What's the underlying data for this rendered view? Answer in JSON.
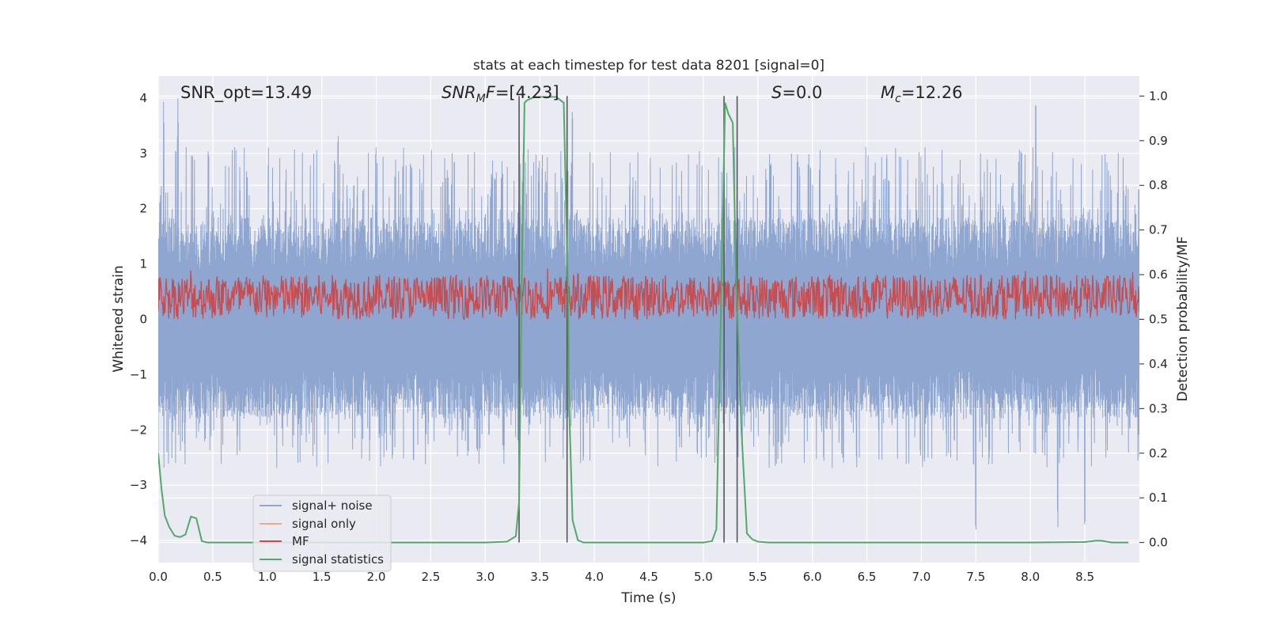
{
  "chart_data": {
    "type": "line",
    "title": "stats at each timestep for test data 8201 [signal=0]",
    "xlabel": "Time (s)",
    "ylabel": "Whitened strain",
    "ylabel_right": "Detection probability/MF",
    "xlim": [
      0.0,
      9.0
    ],
    "ylim": [
      -4.4,
      4.4
    ],
    "ylim_right": [
      -0.045,
      1.045
    ],
    "x_ticks": [
      0.0,
      0.5,
      1.0,
      1.5,
      2.0,
      2.5,
      3.0,
      3.5,
      4.0,
      4.5,
      5.0,
      5.5,
      6.0,
      6.5,
      7.0,
      7.5,
      8.0,
      8.5
    ],
    "x_tick_labels": [
      "0.0",
      "0.5",
      "1.0",
      "1.5",
      "2.0",
      "2.5",
      "3.0",
      "3.5",
      "4.0",
      "4.5",
      "5.0",
      "5.5",
      "6.0",
      "6.5",
      "7.0",
      "7.5",
      "8.0",
      "8.5"
    ],
    "y_ticks": [
      -4,
      -3,
      -2,
      -1,
      0,
      1,
      2,
      3,
      4
    ],
    "y_tick_labels": [
      "−4",
      "−3",
      "−2",
      "−1",
      "0",
      "1",
      "2",
      "3",
      "4"
    ],
    "y_right_ticks": [
      0.0,
      0.1,
      0.2,
      0.3,
      0.4,
      0.5,
      0.6,
      0.7,
      0.8,
      0.9,
      1.0
    ],
    "y_right_tick_labels": [
      "0.0",
      "0.1",
      "0.2",
      "0.3",
      "0.4",
      "0.5",
      "0.6",
      "0.7",
      "0.8",
      "0.9",
      "1.0"
    ],
    "annotations": {
      "snr_opt": "SNR_opt=13.49",
      "snr_mf": "=[4.23]",
      "s": "=0.0",
      "mc": "=12.26"
    },
    "annotation_math": {
      "snr_mf_base": "SNR",
      "snr_mf_sub": "M",
      "snr_mf_tail": "F",
      "s_symbol": "S",
      "mc_base": "M",
      "mc_sub": "c"
    },
    "legend": {
      "position": "lower-left",
      "entries": [
        {
          "label": "signal+ noise",
          "color": "#8fa7d0"
        },
        {
          "label": "signal only",
          "color": "#e9a98e"
        },
        {
          "label": "MF",
          "color": "#c44e52"
        },
        {
          "label": "signal statistics",
          "color": "#55a868"
        }
      ]
    },
    "series": [
      {
        "name": "signal+ noise",
        "color": "#8fa7d0",
        "axis": "left",
        "description_values": {
          "typical_peak_upper": 2.6,
          "typical_peak_lower": -2.3,
          "max": 4.0,
          "min": -3.85,
          "peak_upper_times": [
            0.05,
            0.18,
            1.65,
            3.8,
            8.05
          ],
          "peak_lower_times": [
            7.5,
            8.25,
            8.5
          ]
        }
      },
      {
        "name": "MF",
        "color": "#c44e52",
        "axis": "right",
        "description_values": {
          "baseline": 0.5,
          "typical_max": 0.6,
          "max": 0.63
        }
      },
      {
        "name": "signal statistics",
        "color": "#55a868",
        "axis": "right",
        "x": [
          0.0,
          0.03,
          0.06,
          0.1,
          0.15,
          0.2,
          0.25,
          0.3,
          0.35,
          0.4,
          0.45,
          0.5,
          1.0,
          2.0,
          3.0,
          3.2,
          3.28,
          3.31,
          3.33,
          3.36,
          3.38,
          3.45,
          3.55,
          3.65,
          3.72,
          3.76,
          3.77,
          3.8,
          3.85,
          3.9,
          4.0,
          4.5,
          5.0,
          5.08,
          5.12,
          5.16,
          5.2,
          5.23,
          5.27,
          5.3,
          5.35,
          5.4,
          5.45,
          5.5,
          5.6,
          6.0,
          7.0,
          8.0,
          8.5,
          8.6,
          8.65,
          8.75,
          8.9
        ],
        "values": [
          0.2,
          0.12,
          0.06,
          0.035,
          0.015,
          0.012,
          0.018,
          0.058,
          0.054,
          0.003,
          0.0,
          0.0,
          0.0,
          0.0,
          0.0,
          0.002,
          0.014,
          0.09,
          0.51,
          0.985,
          0.99,
          0.998,
          0.998,
          0.998,
          0.985,
          0.55,
          0.3,
          0.05,
          0.005,
          0.0,
          0.0,
          0.0,
          0.0,
          0.003,
          0.03,
          0.5,
          0.985,
          0.96,
          0.94,
          0.6,
          0.25,
          0.02,
          0.007,
          0.002,
          0.0,
          0.0,
          0.0,
          0.0,
          0.001,
          0.004,
          0.004,
          0.0,
          0.0
        ]
      }
    ],
    "vertical_lines_x": [
      3.31,
      3.75,
      5.19,
      5.31
    ]
  }
}
